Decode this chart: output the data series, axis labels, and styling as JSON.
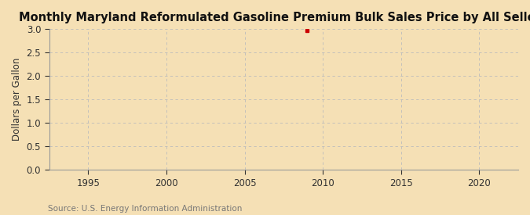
{
  "title": "Monthly Maryland Reformulated Gasoline Premium Bulk Sales Price by All Sellers",
  "ylabel": "Dollars per Gallon",
  "source_text": "Source: U.S. Energy Information Administration",
  "background_color": "#f5e0b5",
  "plot_background_color": "#f5e0b5",
  "xlim": [
    1992.5,
    2022.5
  ],
  "ylim": [
    0.0,
    3.0
  ],
  "xticks": [
    1995,
    2000,
    2005,
    2010,
    2015,
    2020
  ],
  "yticks": [
    0.0,
    0.5,
    1.0,
    1.5,
    2.0,
    2.5,
    3.0
  ],
  "data_point_x": 2009.0,
  "data_point_y": 2.97,
  "data_point_color": "#cc0000",
  "grid_color": "#bbbbbb",
  "grid_linestyle": "--",
  "title_fontsize": 10.5,
  "ylabel_fontsize": 8.5,
  "tick_fontsize": 8.5,
  "source_fontsize": 7.5,
  "spine_color": "#999999"
}
